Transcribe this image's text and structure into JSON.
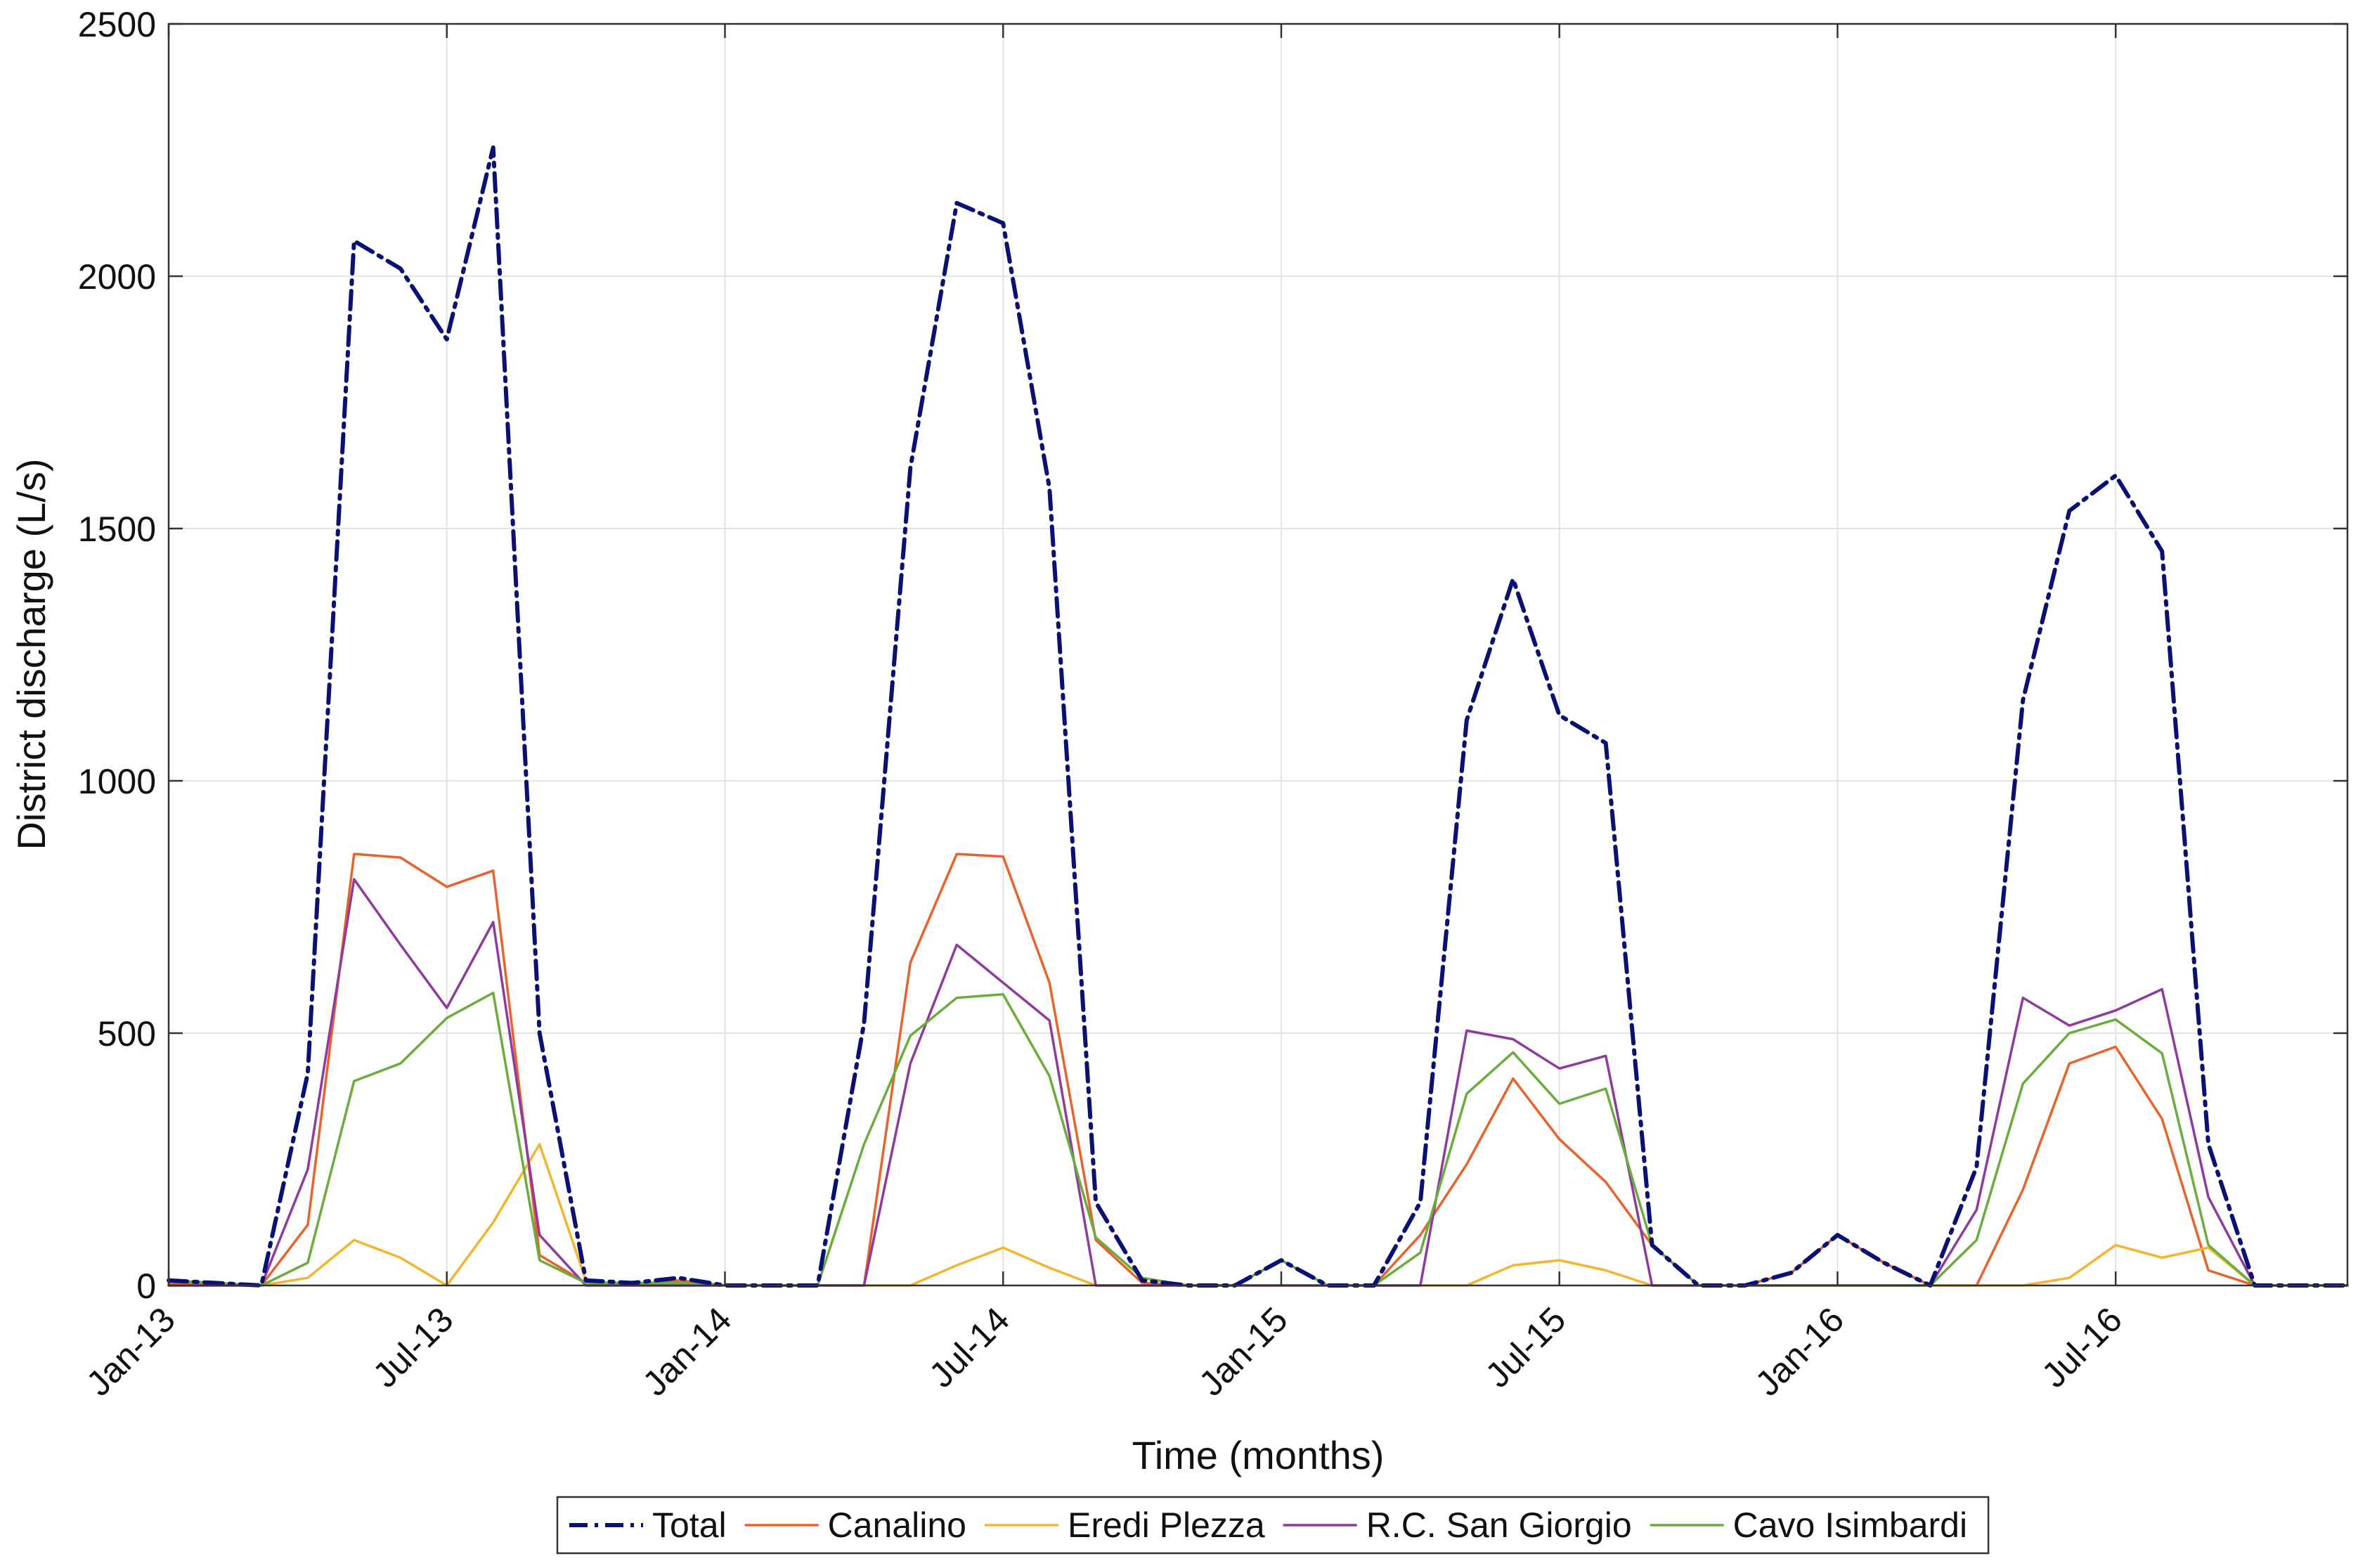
{
  "chart_data": {
    "type": "line",
    "xlabel": "Time (months)",
    "ylabel": "District discharge (L/s)",
    "x_unit": "month",
    "x_start": "2013-01",
    "x_end": "2016-12",
    "x_tick_labels": [
      {
        "date": "2013-01",
        "label": "Jan-13"
      },
      {
        "date": "2013-07",
        "label": "Jul-13"
      },
      {
        "date": "2014-01",
        "label": "Jan-14"
      },
      {
        "date": "2014-07",
        "label": "Jul-14"
      },
      {
        "date": "2015-01",
        "label": "Jan-15"
      },
      {
        "date": "2015-07",
        "label": "Jul-15"
      },
      {
        "date": "2016-01",
        "label": "Jan-16"
      },
      {
        "date": "2016-07",
        "label": "Jul-16"
      }
    ],
    "ylim": [
      0,
      2500
    ],
    "y_ticks": [
      0,
      500,
      1000,
      1500,
      2000,
      2500
    ],
    "grid": true,
    "legend_position": "bottom-outside",
    "x": [
      "2013-01",
      "2013-02",
      "2013-03",
      "2013-04",
      "2013-05",
      "2013-06",
      "2013-07",
      "2013-08",
      "2013-09",
      "2013-10",
      "2013-11",
      "2013-12",
      "2014-01",
      "2014-02",
      "2014-03",
      "2014-04",
      "2014-05",
      "2014-06",
      "2014-07",
      "2014-08",
      "2014-09",
      "2014-10",
      "2014-11",
      "2014-12",
      "2015-01",
      "2015-02",
      "2015-03",
      "2015-04",
      "2015-05",
      "2015-06",
      "2015-07",
      "2015-08",
      "2015-09",
      "2015-10",
      "2015-11",
      "2015-12",
      "2016-01",
      "2016-02",
      "2016-03",
      "2016-04",
      "2016-05",
      "2016-06",
      "2016-07",
      "2016-08",
      "2016-09",
      "2016-10",
      "2016-11",
      "2016-12"
    ],
    "series": [
      {
        "name": "Total",
        "color": "#0a1172",
        "style": "dashdot",
        "values": [
          10,
          5,
          0,
          420,
          2070,
          2015,
          1875,
          2255,
          500,
          10,
          5,
          15,
          0,
          0,
          0,
          520,
          1620,
          2145,
          2105,
          1580,
          165,
          10,
          0,
          0,
          50,
          0,
          0,
          165,
          1120,
          1400,
          1130,
          1075,
          80,
          0,
          0,
          25,
          100,
          45,
          0,
          235,
          1160,
          1535,
          1605,
          1455,
          280,
          0,
          0,
          0
        ]
      },
      {
        "name": "Canalino",
        "color": "#e8622c",
        "style": "solid",
        "values": [
          5,
          2,
          0,
          120,
          855,
          848,
          790,
          822,
          60,
          5,
          2,
          10,
          0,
          0,
          0,
          0,
          640,
          855,
          850,
          600,
          90,
          5,
          0,
          0,
          50,
          0,
          0,
          100,
          240,
          410,
          290,
          205,
          80,
          0,
          0,
          25,
          100,
          45,
          0,
          0,
          190,
          440,
          473,
          330,
          30,
          0,
          0,
          0
        ]
      },
      {
        "name": "Eredi Plezza",
        "color": "#f2b52e",
        "style": "solid",
        "values": [
          0,
          0,
          0,
          15,
          90,
          55,
          0,
          125,
          280,
          10,
          0,
          0,
          0,
          0,
          0,
          0,
          0,
          40,
          75,
          35,
          0,
          0,
          0,
          0,
          0,
          0,
          0,
          0,
          0,
          40,
          50,
          30,
          0,
          0,
          0,
          0,
          0,
          0,
          0,
          0,
          0,
          15,
          80,
          55,
          75,
          0,
          0,
          0
        ]
      },
      {
        "name": "R.C. San Giorgio",
        "color": "#8e3a9e",
        "style": "solid",
        "values": [
          0,
          0,
          0,
          230,
          805,
          675,
          550,
          720,
          100,
          0,
          0,
          0,
          0,
          0,
          0,
          0,
          440,
          675,
          600,
          525,
          0,
          0,
          0,
          0,
          0,
          0,
          0,
          0,
          505,
          488,
          430,
          455,
          0,
          0,
          0,
          0,
          0,
          0,
          0,
          150,
          570,
          515,
          545,
          587,
          175,
          0,
          0,
          0
        ]
      },
      {
        "name": "Cavo Isimbardi",
        "color": "#6aad3c",
        "style": "solid",
        "values": [
          10,
          5,
          0,
          45,
          405,
          440,
          530,
          580,
          50,
          5,
          5,
          5,
          0,
          0,
          0,
          280,
          495,
          570,
          577,
          415,
          95,
          15,
          0,
          0,
          50,
          0,
          0,
          65,
          380,
          462,
          360,
          390,
          80,
          0,
          0,
          0,
          0,
          0,
          0,
          90,
          400,
          500,
          527,
          460,
          80,
          0,
          0,
          0
        ]
      }
    ]
  }
}
